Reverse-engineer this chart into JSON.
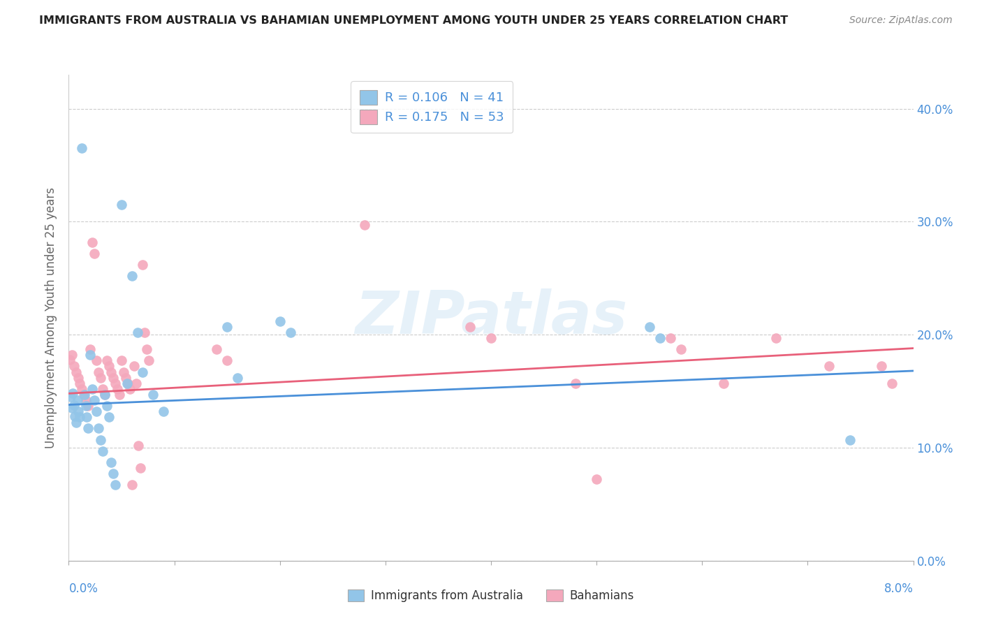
{
  "title": "IMMIGRANTS FROM AUSTRALIA VS BAHAMIAN UNEMPLOYMENT AMONG YOUTH UNDER 25 YEARS CORRELATION CHART",
  "source": "Source: ZipAtlas.com",
  "ylabel": "Unemployment Among Youth under 25 years",
  "blue_color": "#92c5e8",
  "pink_color": "#f4a8bc",
  "blue_line_color": "#4a90d9",
  "pink_line_color": "#e8607a",
  "watermark": "ZIPatlas",
  "legend_blue_R": "0.106",
  "legend_blue_N": "41",
  "legend_pink_R": "0.175",
  "legend_pink_N": "53",
  "xlim": [
    0.0,
    0.08
  ],
  "ylim": [
    0.0,
    0.43
  ],
  "x_ticks": [
    0.0,
    0.01,
    0.02,
    0.03,
    0.04,
    0.05,
    0.06,
    0.07,
    0.08
  ],
  "y_ticks": [
    0.0,
    0.1,
    0.2,
    0.3,
    0.4
  ],
  "blue_scatter": [
    [
      0.0002,
      0.145
    ],
    [
      0.0003,
      0.135
    ],
    [
      0.0004,
      0.148
    ],
    [
      0.0005,
      0.138
    ],
    [
      0.0006,
      0.128
    ],
    [
      0.0007,
      0.122
    ],
    [
      0.0008,
      0.142
    ],
    [
      0.0009,
      0.132
    ],
    [
      0.001,
      0.127
    ],
    [
      0.0012,
      0.365
    ],
    [
      0.0015,
      0.147
    ],
    [
      0.0016,
      0.137
    ],
    [
      0.0017,
      0.127
    ],
    [
      0.0018,
      0.117
    ],
    [
      0.002,
      0.182
    ],
    [
      0.0022,
      0.152
    ],
    [
      0.0024,
      0.142
    ],
    [
      0.0026,
      0.132
    ],
    [
      0.0028,
      0.117
    ],
    [
      0.003,
      0.107
    ],
    [
      0.0032,
      0.097
    ],
    [
      0.0034,
      0.147
    ],
    [
      0.0036,
      0.137
    ],
    [
      0.0038,
      0.127
    ],
    [
      0.004,
      0.087
    ],
    [
      0.0042,
      0.077
    ],
    [
      0.0044,
      0.067
    ],
    [
      0.005,
      0.315
    ],
    [
      0.0055,
      0.157
    ],
    [
      0.006,
      0.252
    ],
    [
      0.0065,
      0.202
    ],
    [
      0.007,
      0.167
    ],
    [
      0.008,
      0.147
    ],
    [
      0.009,
      0.132
    ],
    [
      0.015,
      0.207
    ],
    [
      0.016,
      0.162
    ],
    [
      0.02,
      0.212
    ],
    [
      0.021,
      0.202
    ],
    [
      0.055,
      0.207
    ],
    [
      0.056,
      0.197
    ],
    [
      0.074,
      0.107
    ]
  ],
  "pink_scatter": [
    [
      0.0001,
      0.178
    ],
    [
      0.0003,
      0.182
    ],
    [
      0.0005,
      0.172
    ],
    [
      0.0007,
      0.167
    ],
    [
      0.0009,
      0.162
    ],
    [
      0.001,
      0.157
    ],
    [
      0.0012,
      0.152
    ],
    [
      0.0014,
      0.147
    ],
    [
      0.0016,
      0.142
    ],
    [
      0.0018,
      0.137
    ],
    [
      0.002,
      0.187
    ],
    [
      0.0022,
      0.282
    ],
    [
      0.0024,
      0.272
    ],
    [
      0.0026,
      0.177
    ],
    [
      0.0028,
      0.167
    ],
    [
      0.003,
      0.162
    ],
    [
      0.0032,
      0.152
    ],
    [
      0.0034,
      0.147
    ],
    [
      0.0036,
      0.177
    ],
    [
      0.0038,
      0.172
    ],
    [
      0.004,
      0.167
    ],
    [
      0.0042,
      0.162
    ],
    [
      0.0044,
      0.157
    ],
    [
      0.0046,
      0.152
    ],
    [
      0.0048,
      0.147
    ],
    [
      0.005,
      0.177
    ],
    [
      0.0052,
      0.167
    ],
    [
      0.0054,
      0.162
    ],
    [
      0.0056,
      0.157
    ],
    [
      0.0058,
      0.152
    ],
    [
      0.006,
      0.067
    ],
    [
      0.0062,
      0.172
    ],
    [
      0.0064,
      0.157
    ],
    [
      0.0066,
      0.102
    ],
    [
      0.0068,
      0.082
    ],
    [
      0.007,
      0.262
    ],
    [
      0.0072,
      0.202
    ],
    [
      0.0074,
      0.187
    ],
    [
      0.0076,
      0.177
    ],
    [
      0.014,
      0.187
    ],
    [
      0.015,
      0.177
    ],
    [
      0.028,
      0.297
    ],
    [
      0.038,
      0.207
    ],
    [
      0.04,
      0.197
    ],
    [
      0.048,
      0.157
    ],
    [
      0.05,
      0.072
    ],
    [
      0.057,
      0.197
    ],
    [
      0.058,
      0.187
    ],
    [
      0.062,
      0.157
    ],
    [
      0.067,
      0.197
    ],
    [
      0.072,
      0.172
    ],
    [
      0.077,
      0.172
    ],
    [
      0.078,
      0.157
    ]
  ],
  "blue_trendline": [
    [
      0.0,
      0.138
    ],
    [
      0.08,
      0.168
    ]
  ],
  "pink_trendline": [
    [
      0.0,
      0.148
    ],
    [
      0.08,
      0.188
    ]
  ]
}
